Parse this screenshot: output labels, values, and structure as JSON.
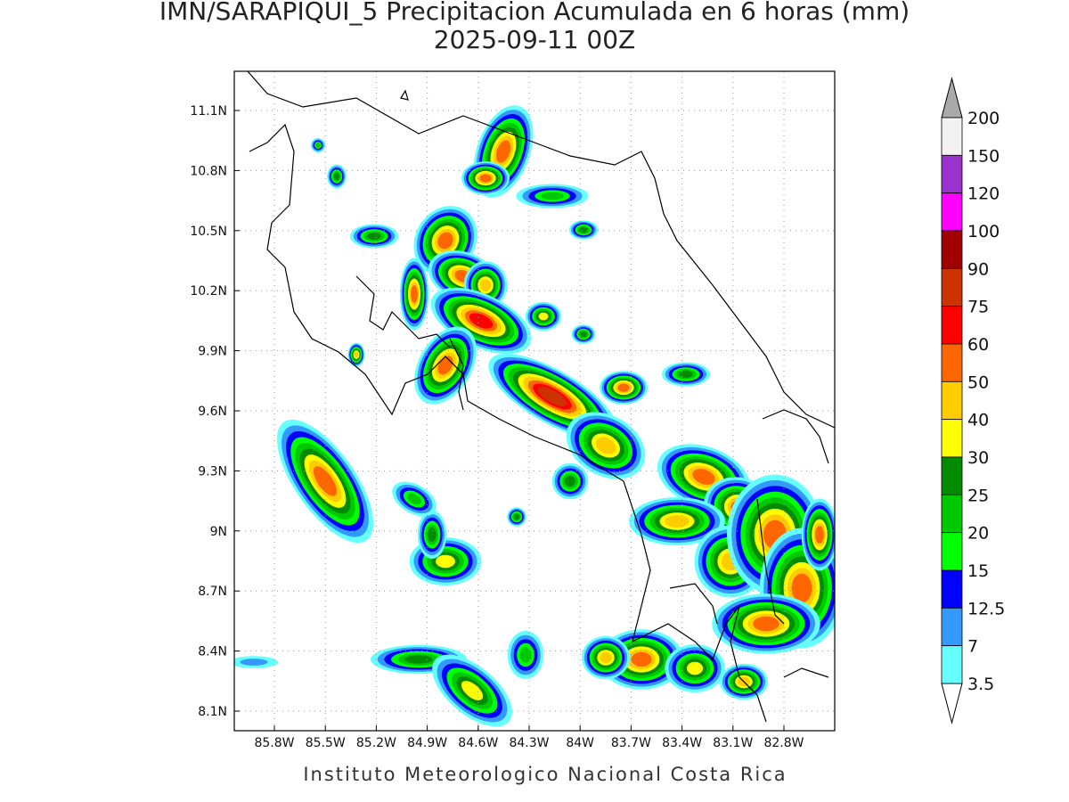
{
  "header": {
    "title": "IMN/SARAPIQUI_5 Precipitacion Acumulada en 6 horas (mm)",
    "subtitle": "2025-09-11 00Z"
  },
  "map": {
    "lon_labels": [
      "85.8W",
      "85.5W",
      "85.2W",
      "84.9W",
      "84.6W",
      "84.3W",
      "84W",
      "83.7W",
      "83.4W",
      "83.1W",
      "82.8W"
    ],
    "lat_labels": [
      "11.1N",
      "10.8N",
      "10.5N",
      "10.2N",
      "9.9N",
      "9.6N",
      "9.3N",
      "9N",
      "8.7N",
      "8.4N",
      "8.1N"
    ]
  },
  "colorbar": {
    "labels": [
      "200",
      "150",
      "120",
      "100",
      "90",
      "75",
      "60",
      "50",
      "40",
      "30",
      "25",
      "20",
      "15",
      "12.5",
      "7",
      "3.5"
    ],
    "colors": [
      "#f2f2f2",
      "#9a32cd",
      "#ff00ff",
      "#a00000",
      "#cd3300",
      "#ff0000",
      "#ff6600",
      "#ffcc00",
      "#ffff00",
      "#008b00",
      "#00c800",
      "#00ff00",
      "#0000ff",
      "#3399ff",
      "#66ffff"
    ],
    "over_color": "#aaaaaa",
    "under_color": "#ffffff"
  },
  "footer": "Instituto Meteorologico Nacional Costa Rica"
}
